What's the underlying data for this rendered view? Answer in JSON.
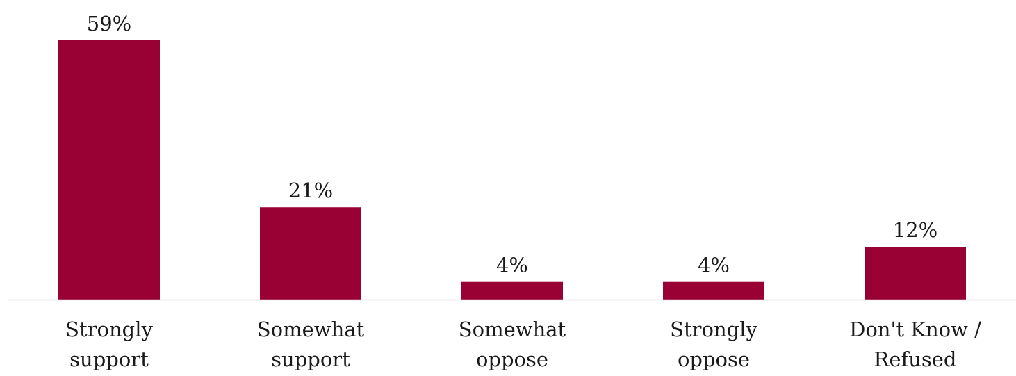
{
  "chart_data": {
    "type": "bar",
    "categories": [
      [
        "Strongly",
        "support"
      ],
      [
        "Somewhat",
        "support"
      ],
      [
        "Somewhat",
        "oppose"
      ],
      [
        "Strongly",
        "oppose"
      ],
      [
        "Don't Know /",
        "Refused"
      ]
    ],
    "values": [
      59,
      21,
      4,
      4,
      12
    ],
    "value_labels": [
      "59%",
      "21%",
      "4%",
      "4%",
      "12%"
    ],
    "ylim": [
      0,
      59
    ],
    "grid": false,
    "legend": "none",
    "bar_color": "#990033",
    "axis_color": "#d9d9d9"
  }
}
